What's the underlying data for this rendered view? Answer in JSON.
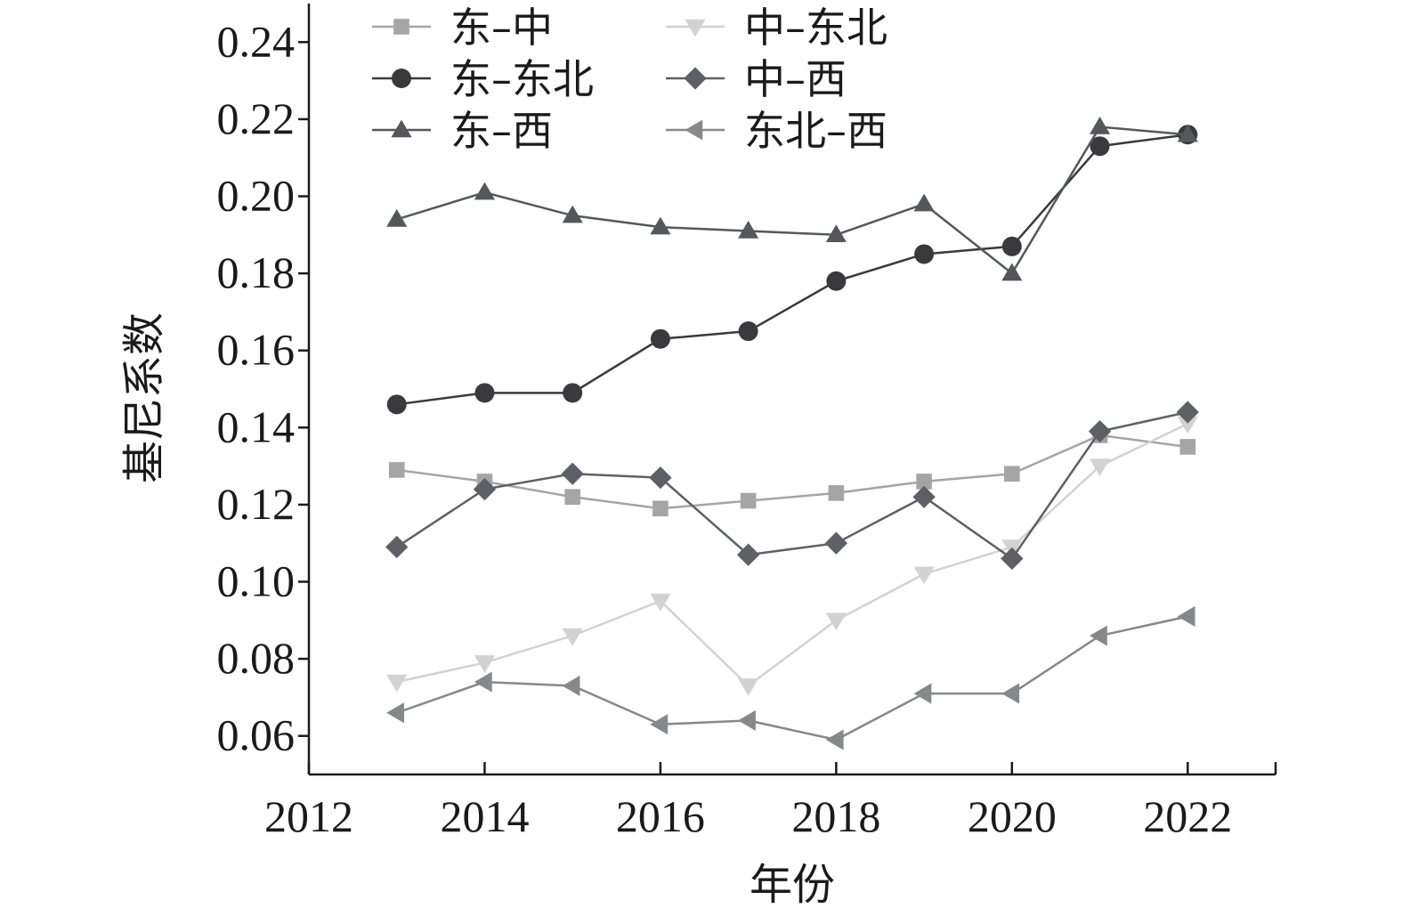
{
  "chart_data": {
    "type": "line",
    "xlabel": "年份",
    "ylabel": "基尼系数",
    "xlim": [
      2012,
      2023
    ],
    "ylim": [
      0.05,
      0.25
    ],
    "xticks": [
      2012,
      2014,
      2016,
      2018,
      2020,
      2022
    ],
    "xtick_labels": [
      "2012",
      "2014",
      "2016",
      "2018",
      "2020",
      "2022"
    ],
    "yticks": [
      0.06,
      0.08,
      0.1,
      0.12,
      0.14,
      0.16,
      0.18,
      0.2,
      0.22,
      0.24
    ],
    "ytick_labels": [
      "0.06",
      "0.08",
      "0.10",
      "0.12",
      "0.14",
      "0.16",
      "0.18",
      "0.20",
      "0.22",
      "0.24"
    ],
    "grid": false,
    "legend_position": "top",
    "x": [
      2013,
      2014,
      2015,
      2016,
      2017,
      2018,
      2019,
      2020,
      2021,
      2022
    ],
    "series": [
      {
        "name": "东–中",
        "marker": "square",
        "color": "#a5a5a5",
        "values": [
          0.129,
          0.126,
          0.122,
          0.119,
          0.121,
          0.123,
          0.126,
          0.128,
          0.138,
          0.135
        ]
      },
      {
        "name": "东–东北",
        "marker": "circle",
        "color": "#3a3a3e",
        "values": [
          0.146,
          0.149,
          0.149,
          0.163,
          0.165,
          0.178,
          0.185,
          0.187,
          0.213,
          0.216
        ]
      },
      {
        "name": "东–西",
        "marker": "triangle-up",
        "color": "#54575c",
        "values": [
          0.194,
          0.201,
          0.195,
          0.192,
          0.191,
          0.19,
          0.198,
          0.18,
          0.218,
          0.216
        ]
      },
      {
        "name": "中–东北",
        "marker": "triangle-down",
        "color": "#d2d2d2",
        "values": [
          0.074,
          0.079,
          0.086,
          0.095,
          0.073,
          0.09,
          0.102,
          0.109,
          0.13,
          0.141
        ]
      },
      {
        "name": "中–西",
        "marker": "diamond",
        "color": "#5d6066",
        "values": [
          0.109,
          0.124,
          0.128,
          0.127,
          0.107,
          0.11,
          0.122,
          0.106,
          0.139,
          0.144
        ]
      },
      {
        "name": "东北–西",
        "marker": "triangle-left",
        "color": "#86888c",
        "values": [
          0.066,
          0.074,
          0.073,
          0.063,
          0.064,
          0.059,
          0.071,
          0.071,
          0.086,
          0.091
        ]
      }
    ]
  }
}
